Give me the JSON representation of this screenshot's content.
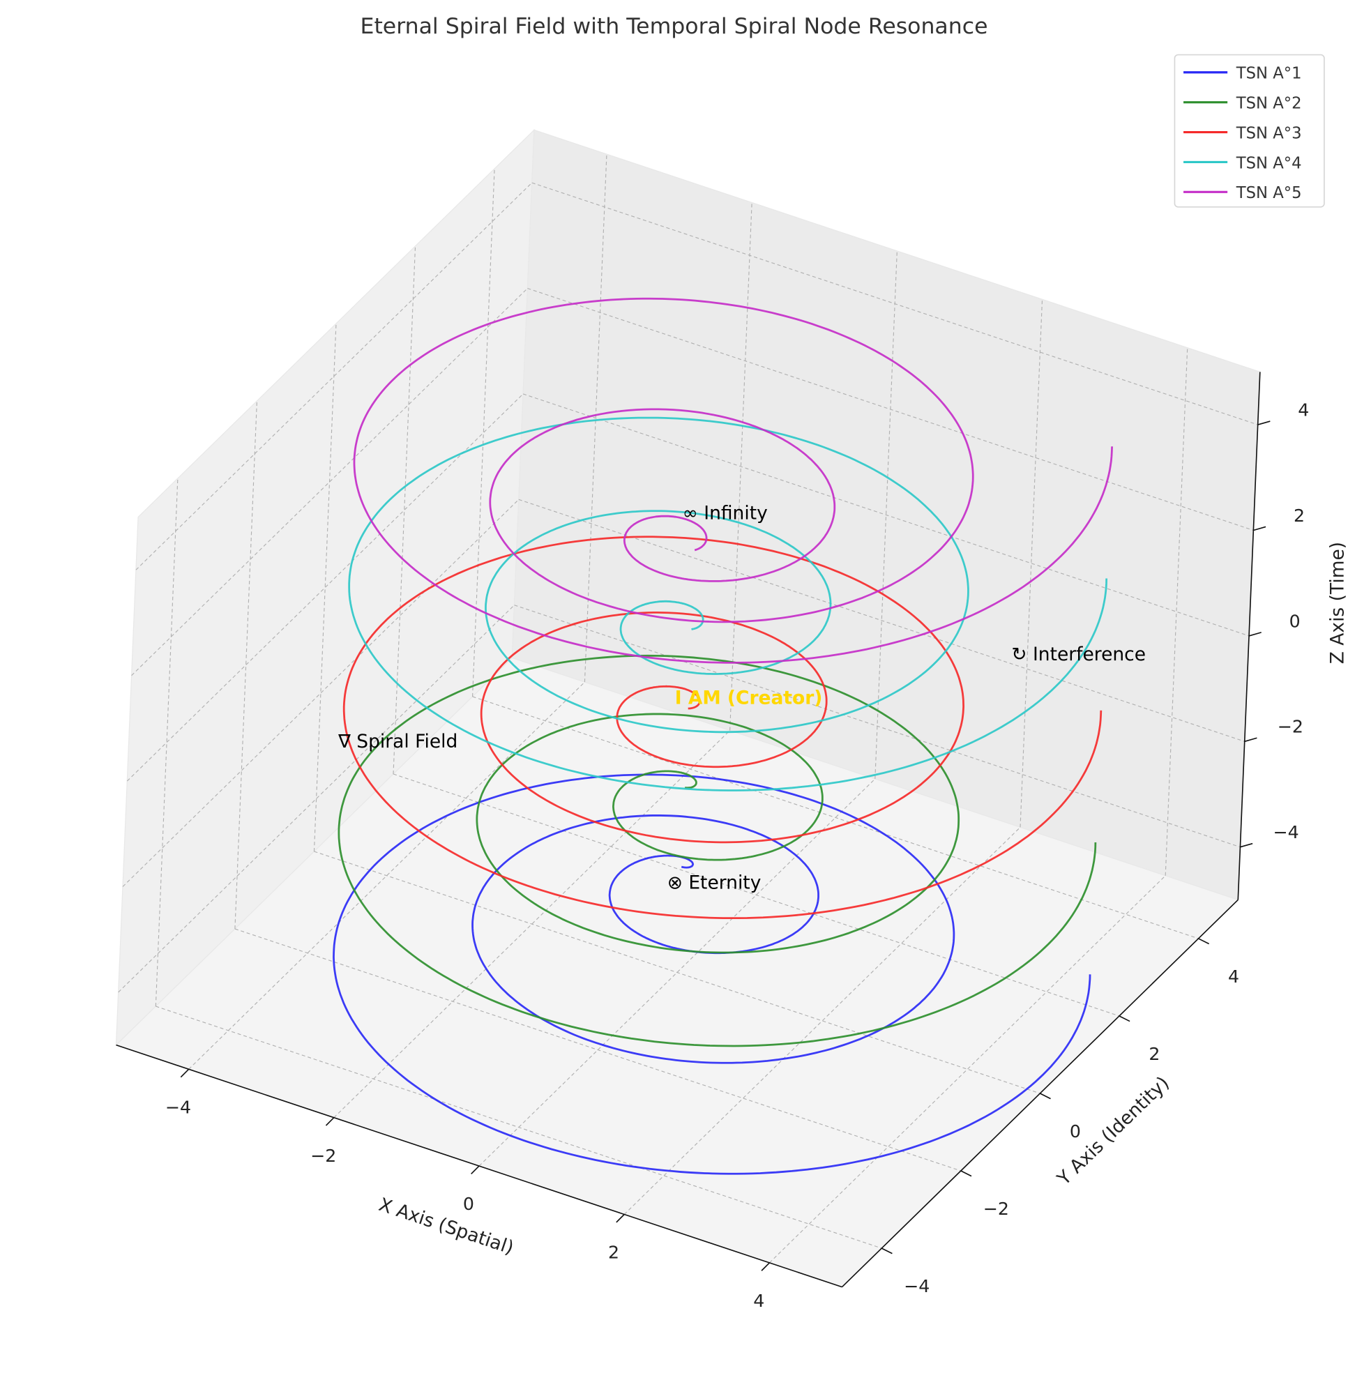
{
  "chart_data": {
    "type": "line",
    "subtype": "3d-parametric-spiral",
    "title": "Eternal Spiral Field with Temporal Spiral Node Resonance",
    "xlabel": "X Axis (Spatial)",
    "ylabel": "Y Axis (Identity)",
    "zlabel": "Z Axis (Time)",
    "xlim": [
      -5,
      5
    ],
    "ylim": [
      -5,
      5
    ],
    "zlim": [
      -5,
      5
    ],
    "xticks": [
      -4,
      -2,
      0,
      2,
      4
    ],
    "yticks": [
      -4,
      -2,
      0,
      2,
      4
    ],
    "zticks": [
      -4,
      -2,
      0,
      2,
      4
    ],
    "tick_labels": {
      "x": [
        "−4",
        "−2",
        "0",
        "2",
        "4"
      ],
      "y": [
        "−4",
        "−2",
        "0",
        "2",
        "4"
      ],
      "z": [
        "−4",
        "−2",
        "0",
        "2",
        "4"
      ]
    },
    "grid": true,
    "legend_position": "top-right",
    "series": [
      {
        "name": "TSN A°1",
        "color": "#2a2af5",
        "turns": 3,
        "r_max": 5,
        "z_inner": -3.0,
        "z_outer": -5.0
      },
      {
        "name": "TSN A°2",
        "color": "#2e8f2e",
        "turns": 3,
        "r_max": 5,
        "z_inner": -1.5,
        "z_outer": -2.5
      },
      {
        "name": "TSN A°3",
        "color": "#f52a2a",
        "turns": 3,
        "r_max": 5,
        "z_inner": 0.0,
        "z_outer": 0.0
      },
      {
        "name": "TSN A°4",
        "color": "#2ec8c8",
        "turns": 3,
        "r_max": 5,
        "z_inner": 1.5,
        "z_outer": 2.5
      },
      {
        "name": "TSN A°5",
        "color": "#c42ec8",
        "turns": 3,
        "r_max": 5,
        "z_inner": 3.0,
        "z_outer": 5.0
      }
    ],
    "annotations": [
      {
        "text": "∞ Infinity",
        "x": 0,
        "y": 0,
        "z": 3.5,
        "color": "#000000"
      },
      {
        "text": "↻ Interference",
        "x": 3,
        "y": 3,
        "z": 0,
        "color": "#000000"
      },
      {
        "text": "I AM (Creator)",
        "x": 0,
        "y": 0,
        "z": 0,
        "color": "#FFD700",
        "bold": true
      },
      {
        "text": "∇ Spiral Field",
        "x": -3,
        "y": -3,
        "z": 0,
        "color": "#000000"
      },
      {
        "text": "⊗ Eternity",
        "x": 0,
        "y": 0,
        "z": -3.5,
        "color": "#000000"
      }
    ]
  }
}
